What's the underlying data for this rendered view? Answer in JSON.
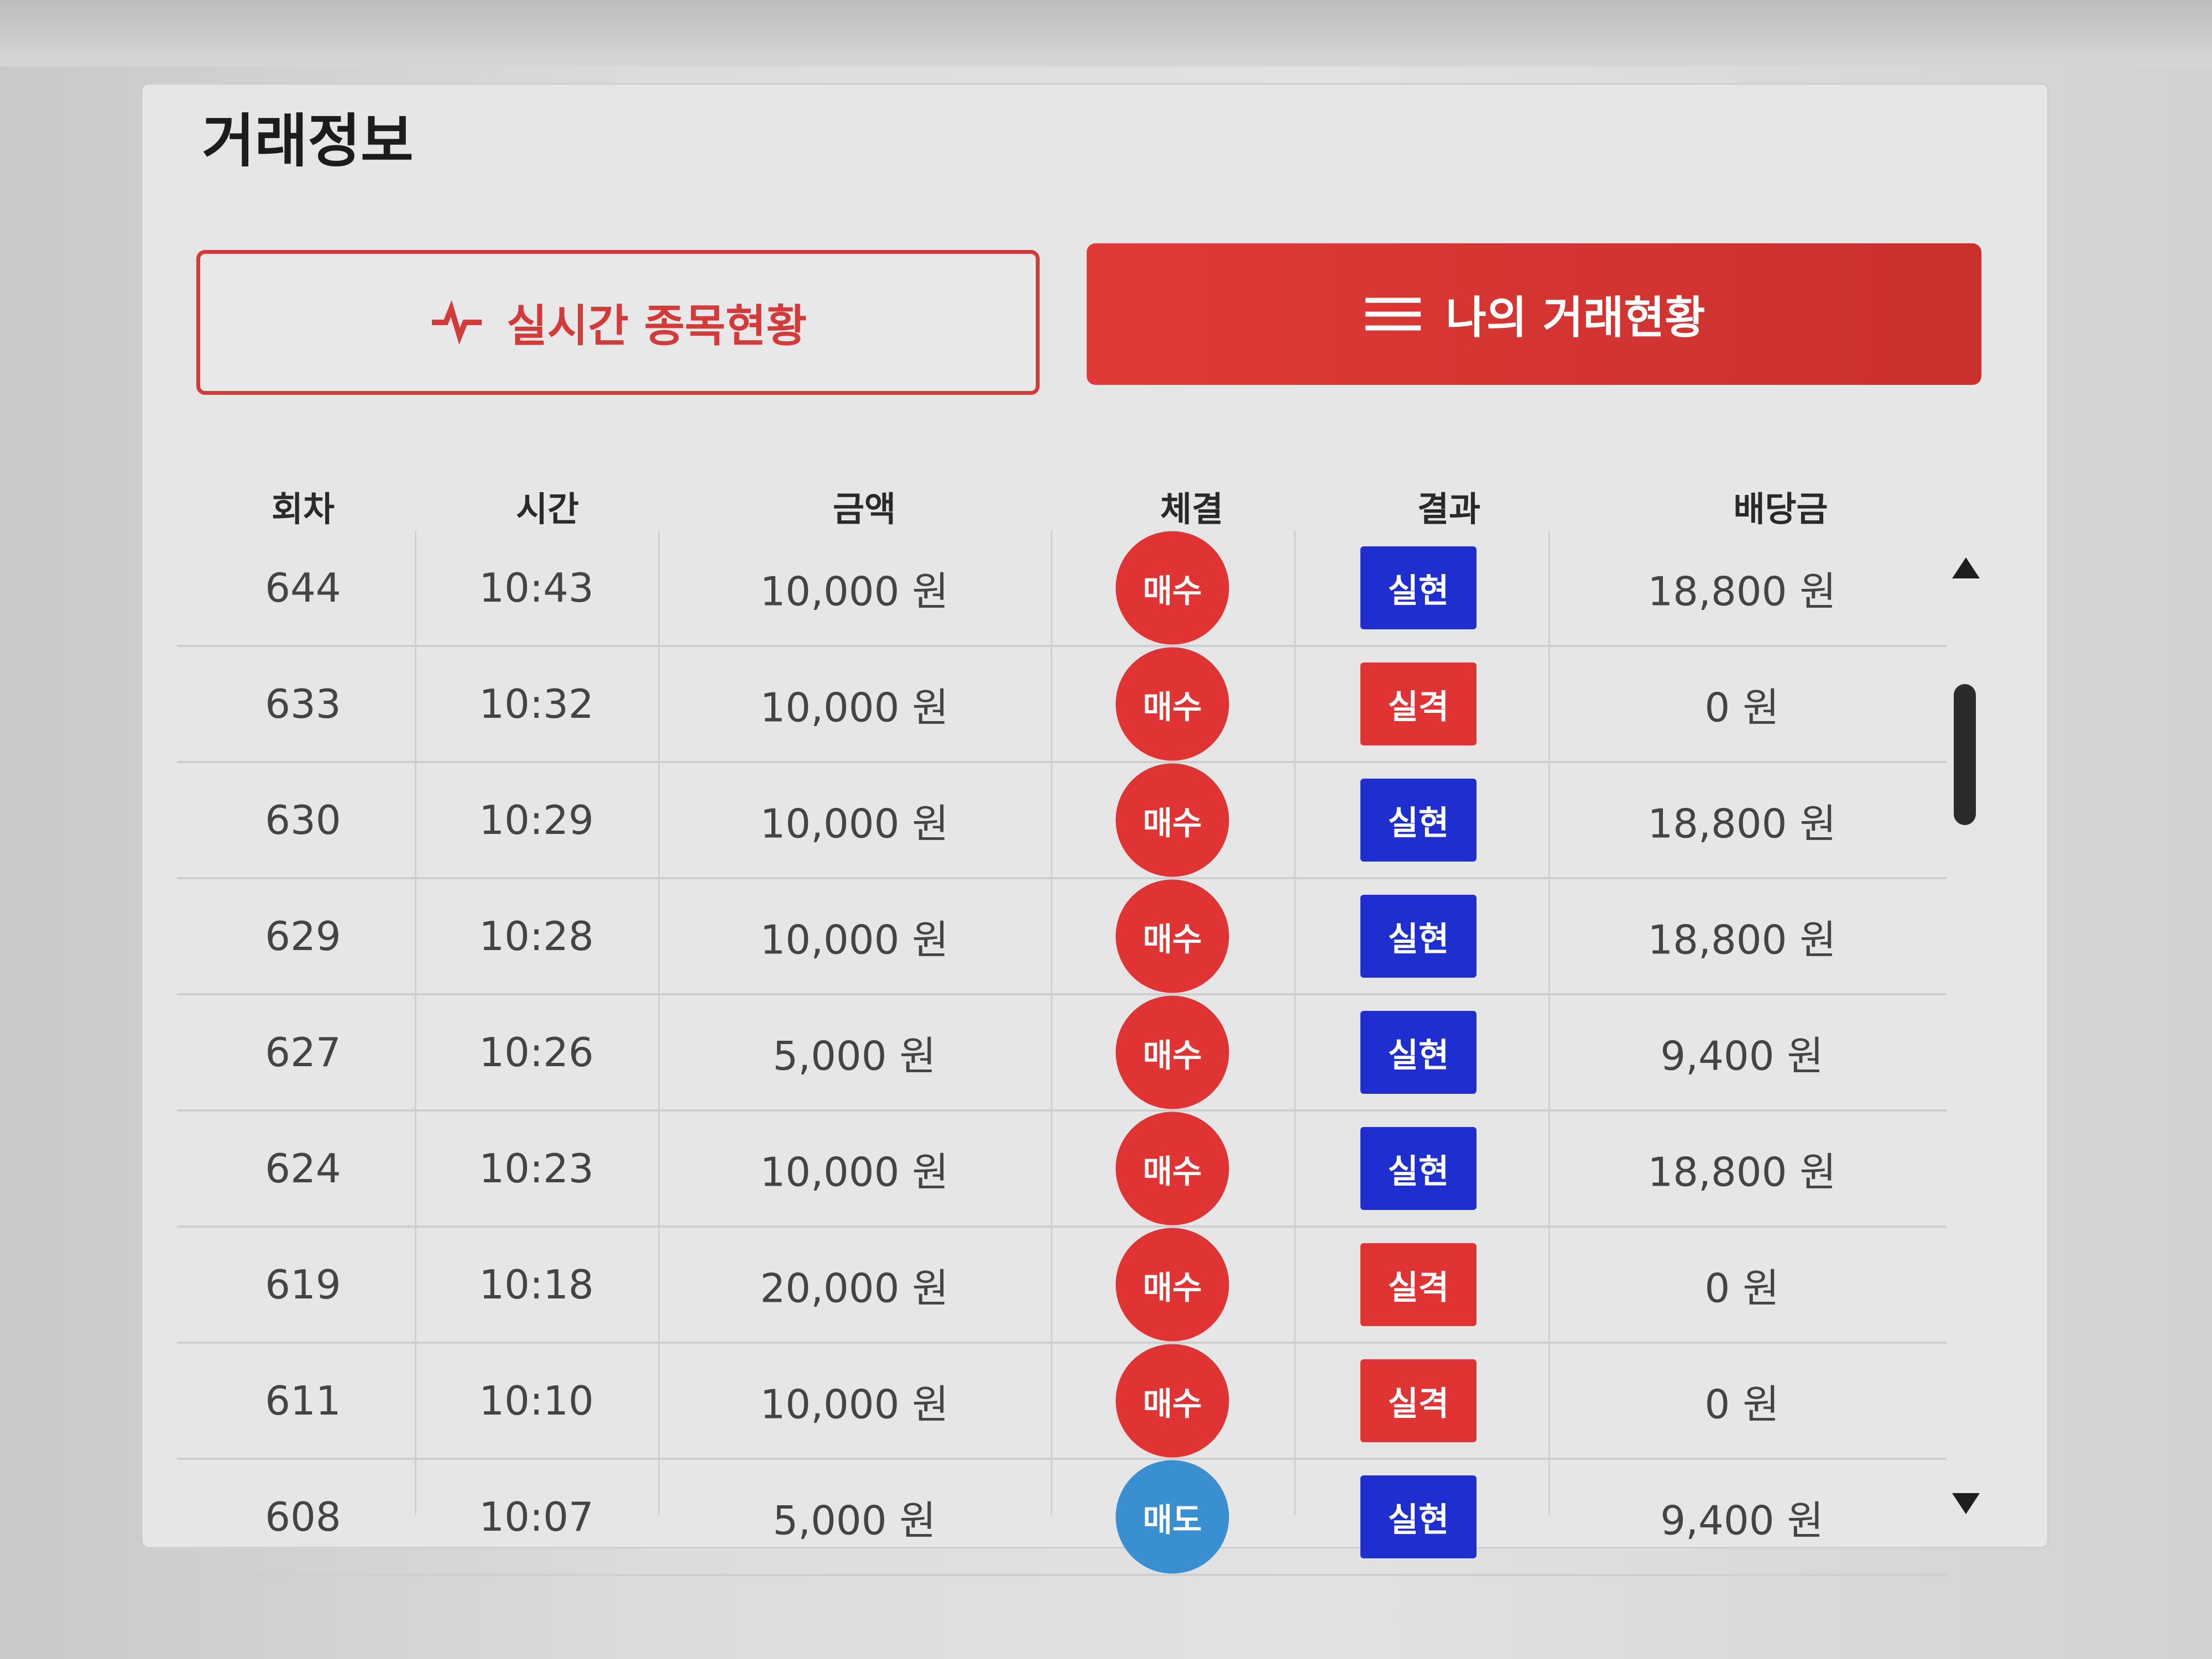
{
  "title": "거래정보",
  "tabs": [
    {
      "label": "실시간 종목현황",
      "icon": "pulse-icon",
      "active": false
    },
    {
      "label": "나의 거래현황",
      "icon": "list-lines-icon",
      "active": true
    }
  ],
  "colors": {
    "accent": "#e03a36",
    "loss": "#e03333",
    "win": "#1f2fcf",
    "sell": "#3a8fd0"
  },
  "table": {
    "headers": [
      "회차",
      "시간",
      "금액",
      "체결",
      "결과",
      "배당금"
    ],
    "rows": [
      {
        "round": "644",
        "time": "10:43",
        "amount": "10,000 원",
        "trade": "매수",
        "result": "실현",
        "payout": "18,800 원"
      },
      {
        "round": "633",
        "time": "10:32",
        "amount": "10,000 원",
        "trade": "매수",
        "result": "실격",
        "payout": "0 원"
      },
      {
        "round": "630",
        "time": "10:29",
        "amount": "10,000 원",
        "trade": "매수",
        "result": "실현",
        "payout": "18,800 원"
      },
      {
        "round": "629",
        "time": "10:28",
        "amount": "10,000 원",
        "trade": "매수",
        "result": "실현",
        "payout": "18,800 원"
      },
      {
        "round": "627",
        "time": "10:26",
        "amount": "5,000 원",
        "trade": "매수",
        "result": "실현",
        "payout": "9,400 원"
      },
      {
        "round": "624",
        "time": "10:23",
        "amount": "10,000 원",
        "trade": "매수",
        "result": "실현",
        "payout": "18,800 원"
      },
      {
        "round": "619",
        "time": "10:18",
        "amount": "20,000 원",
        "trade": "매수",
        "result": "실격",
        "payout": "0 원"
      },
      {
        "round": "611",
        "time": "10:10",
        "amount": "10,000 원",
        "trade": "매수",
        "result": "실격",
        "payout": "0 원"
      },
      {
        "round": "608",
        "time": "10:07",
        "amount": "5,000 원",
        "trade": "매도",
        "result": "실현",
        "payout": "9,400 원"
      }
    ]
  }
}
